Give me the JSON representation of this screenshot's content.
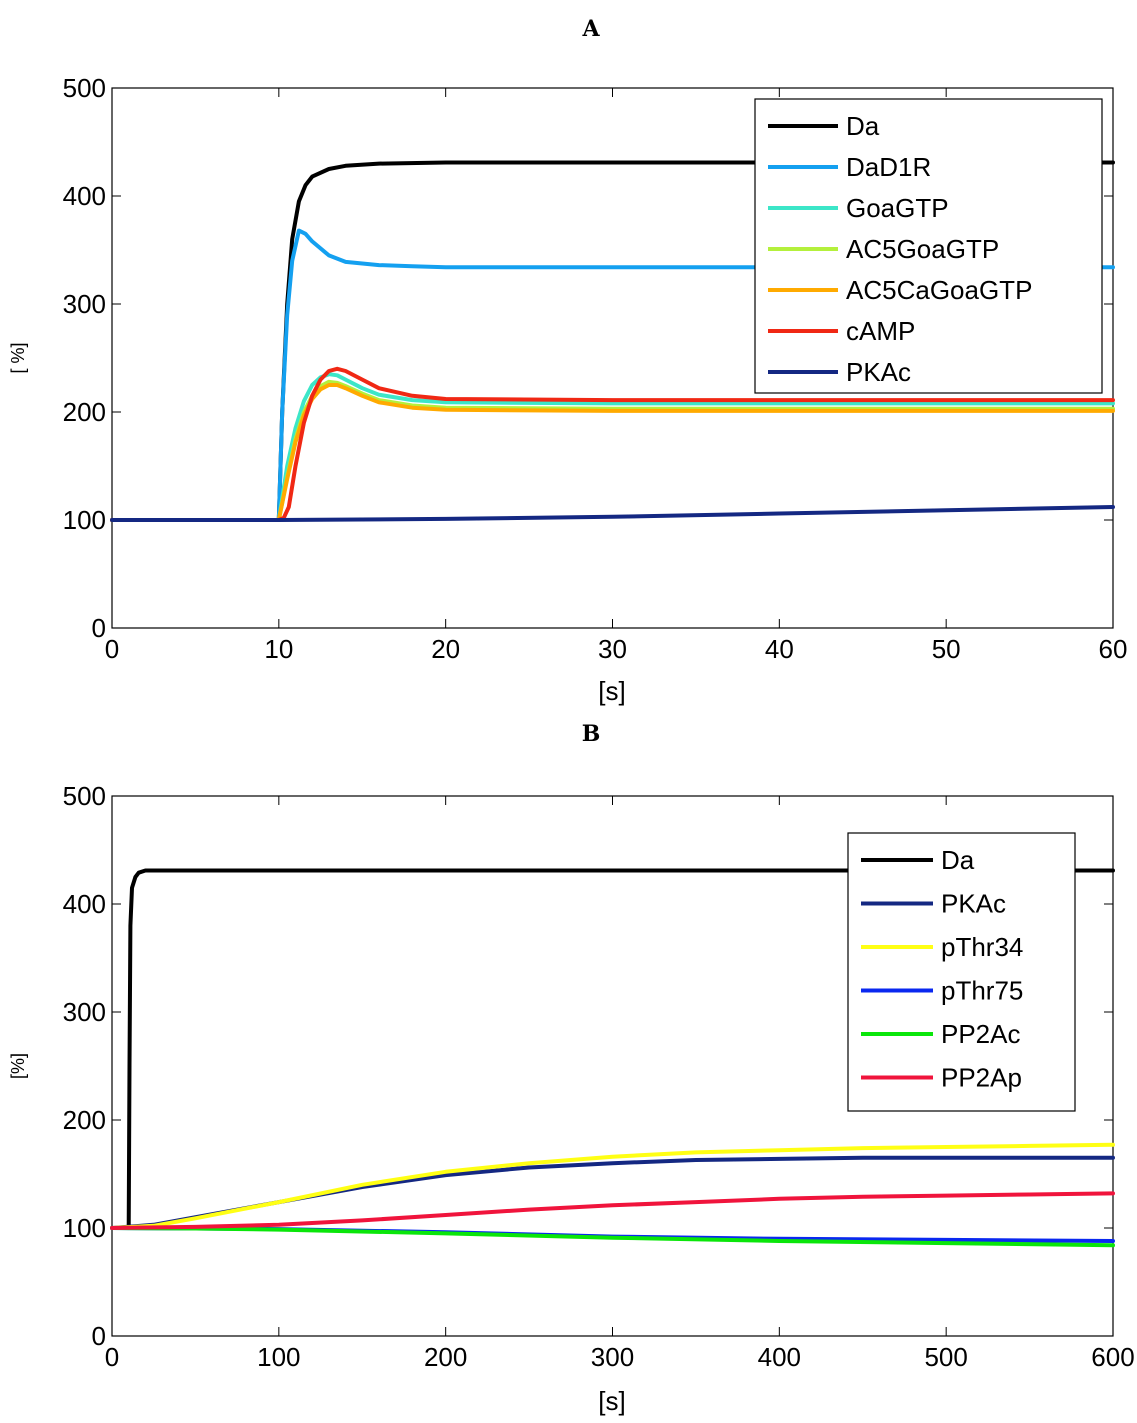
{
  "colors": {
    "Da": "#000000",
    "DaD1R": "#14a0f0",
    "GoaGTP": "#3ce6c8",
    "AC5GoaGTP": "#b4f03c",
    "AC5CaGoaGTP": "#ffaa00",
    "cAMP": "#f02814",
    "PKAc": "#142882",
    "pThr34": "#ffff14",
    "pThr75": "#0a28f0",
    "PP2Ac": "#0ae60a",
    "PP2Ap": "#f0143c"
  },
  "chart_data": [
    {
      "type": "line",
      "title": "A",
      "xlabel": "[s]",
      "ylabel": "[ %]",
      "xlim": [
        0,
        60
      ],
      "ylim": [
        0,
        500
      ],
      "xticks": [
        0,
        10,
        20,
        30,
        40,
        50,
        60
      ],
      "yticks": [
        0,
        100,
        200,
        300,
        400,
        500
      ],
      "grid": false,
      "legend_position": "top-right",
      "series": [
        {
          "name": "Da",
          "x": [
            0,
            10,
            10.2,
            10.5,
            10.8,
            11.2,
            11.6,
            12,
            13,
            14,
            16,
            20,
            30,
            60
          ],
          "y": [
            100,
            100,
            200,
            300,
            360,
            395,
            410,
            418,
            425,
            428,
            430,
            431,
            431,
            431
          ]
        },
        {
          "name": "DaD1R",
          "x": [
            0,
            10,
            10.2,
            10.5,
            10.8,
            11.2,
            11.6,
            12,
            13,
            14,
            16,
            18,
            20,
            30,
            60
          ],
          "y": [
            100,
            100,
            200,
            290,
            340,
            368,
            365,
            358,
            345,
            339,
            336,
            335,
            334,
            334,
            334
          ]
        },
        {
          "name": "GoaGTP",
          "x": [
            0,
            10,
            10.5,
            11,
            11.5,
            12,
            12.5,
            13,
            13.5,
            14,
            15,
            16,
            18,
            20,
            30,
            60
          ],
          "y": [
            100,
            100,
            150,
            185,
            210,
            225,
            232,
            235,
            234,
            230,
            222,
            216,
            211,
            209,
            208,
            208
          ]
        },
        {
          "name": "AC5GoaGTP",
          "x": [
            0,
            10,
            10.5,
            11,
            11.5,
            12,
            12.5,
            13,
            13.5,
            14,
            15,
            16,
            18,
            20,
            30,
            60
          ],
          "y": [
            100,
            100,
            140,
            175,
            200,
            215,
            224,
            228,
            227,
            224,
            217,
            211,
            206,
            204,
            203,
            203
          ]
        },
        {
          "name": "AC5CaGoaGTP",
          "x": [
            0,
            10,
            10.5,
            11,
            11.5,
            12,
            12.5,
            13,
            13.5,
            14,
            15,
            16,
            18,
            20,
            30,
            60
          ],
          "y": [
            100,
            100,
            138,
            172,
            197,
            212,
            221,
            225,
            225,
            222,
            215,
            209,
            204,
            202,
            201,
            201
          ]
        },
        {
          "name": "cAMP",
          "x": [
            0,
            10,
            10.3,
            10.6,
            11,
            11.5,
            12,
            12.5,
            13,
            13.5,
            14,
            15,
            16,
            18,
            20,
            30,
            60
          ],
          "y": [
            100,
            100,
            102,
            112,
            150,
            190,
            215,
            230,
            238,
            240,
            238,
            230,
            222,
            215,
            212,
            211,
            211
          ]
        },
        {
          "name": "PKAc",
          "x": [
            0,
            10,
            20,
            30,
            40,
            50,
            60
          ],
          "y": [
            100,
            100,
            101,
            103,
            106,
            109,
            112
          ]
        }
      ]
    },
    {
      "type": "line",
      "title": "B",
      "xlabel": "[s]",
      "ylabel": "[%]",
      "xlim": [
        0,
        600
      ],
      "ylim": [
        0,
        500
      ],
      "xticks": [
        0,
        100,
        200,
        300,
        400,
        500,
        600
      ],
      "yticks": [
        0,
        100,
        200,
        300,
        400,
        500
      ],
      "grid": false,
      "legend_position": "top-right",
      "series": [
        {
          "name": "Da",
          "x": [
            0,
            10,
            10.5,
            11,
            12,
            14,
            16,
            20,
            600
          ],
          "y": [
            100,
            100,
            250,
            380,
            415,
            425,
            429,
            431,
            431
          ]
        },
        {
          "name": "PKAc",
          "x": [
            0,
            25,
            50,
            100,
            150,
            200,
            250,
            300,
            350,
            400,
            450,
            500,
            550,
            600
          ],
          "y": [
            100,
            103,
            110,
            124,
            138,
            149,
            156,
            160,
            163,
            164,
            165,
            165,
            165,
            165
          ]
        },
        {
          "name": "pThr34",
          "x": [
            0,
            25,
            50,
            100,
            150,
            200,
            250,
            300,
            350,
            400,
            450,
            500,
            550,
            600
          ],
          "y": [
            100,
            102,
            109,
            124,
            140,
            152,
            160,
            166,
            170,
            172,
            174,
            175,
            176,
            177
          ]
        },
        {
          "name": "pThr75",
          "x": [
            0,
            50,
            100,
            200,
            300,
            400,
            500,
            600
          ],
          "y": [
            100,
            99.5,
            99,
            96,
            92,
            90,
            89,
            88
          ]
        },
        {
          "name": "PP2Ac",
          "x": [
            0,
            50,
            100,
            200,
            300,
            400,
            500,
            600
          ],
          "y": [
            100,
            99.5,
            98.5,
            95,
            91,
            88,
            86,
            84
          ]
        },
        {
          "name": "PP2Ap",
          "x": [
            0,
            50,
            100,
            150,
            200,
            250,
            300,
            350,
            400,
            450,
            500,
            550,
            600
          ],
          "y": [
            100,
            101,
            103,
            107,
            112,
            117,
            121,
            124,
            127,
            129,
            130,
            131,
            132
          ]
        }
      ]
    }
  ]
}
